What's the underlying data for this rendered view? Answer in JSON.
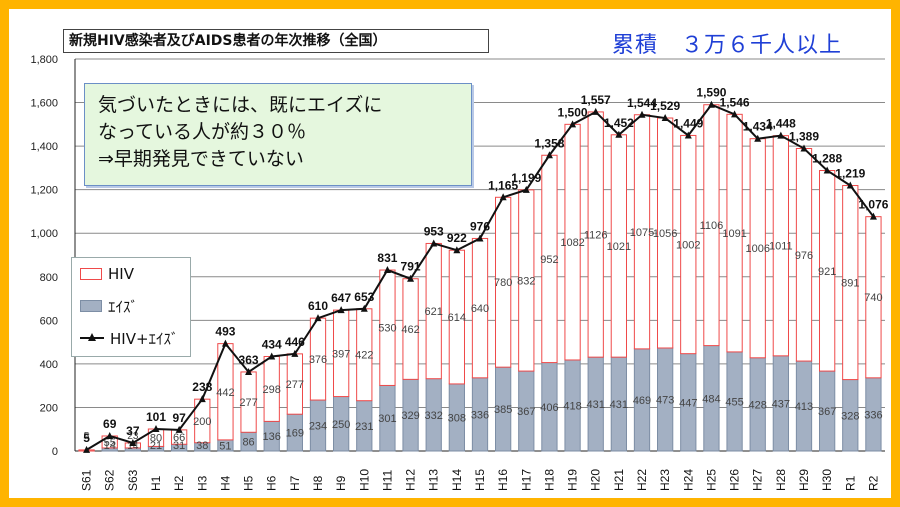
{
  "title": "新規HIV感染者及びAIDS患者の年次推移（全国）",
  "total_label": "累積　３万６千人以上",
  "note": [
    "気づいたときには、既にエイズに",
    "なっている人が約３０％",
    "⇒早期発見できていない"
  ],
  "legend": {
    "hiv": "HIV",
    "aids": "ｴｲｽﾞ",
    "total": "HIV+ｴｲｽﾞ"
  },
  "colors": {
    "frame": "#ffb400",
    "hiv_border": "#ef4a4a",
    "aids_fill": "#a3b0c3",
    "aids_border": "#7d8ea5",
    "line": "#111111",
    "total_text": "#1f3fd6",
    "note_bg": "#e5f7de"
  },
  "chart_data": {
    "type": "bar",
    "stacked": true,
    "categories": [
      "S61",
      "S62",
      "S63",
      "H1",
      "H2",
      "H3",
      "H4",
      "H5",
      "H6",
      "H7",
      "H8",
      "H9",
      "H10",
      "H11",
      "H12",
      "H13",
      "H14",
      "H15",
      "H16",
      "H17",
      "H18",
      "H19",
      "H20",
      "H21",
      "H22",
      "H23",
      "H24",
      "H25",
      "H26",
      "H27",
      "H28",
      "H29",
      "H30",
      "R1",
      "R2"
    ],
    "series": [
      {
        "name": "ｴｲｽﾞ",
        "values": [
          0,
          14,
          14,
          21,
          31,
          38,
          51,
          86,
          136,
          169,
          234,
          250,
          231,
          301,
          329,
          332,
          308,
          336,
          385,
          367,
          406,
          418,
          431,
          431,
          469,
          473,
          447,
          484,
          455,
          428,
          437,
          413,
          367,
          328,
          336
        ]
      },
      {
        "name": "HIV",
        "values": [
          5,
          55,
          23,
          80,
          66,
          200,
          442,
          277,
          298,
          277,
          376,
          397,
          422,
          530,
          462,
          621,
          614,
          640,
          780,
          832,
          952,
          1082,
          1126,
          1021,
          1075,
          1056,
          1002,
          1106,
          1091,
          1006,
          1011,
          976,
          921,
          891,
          740
        ]
      },
      {
        "name": "HIV+ｴｲｽﾞ",
        "type": "line",
        "values": [
          5,
          69,
          37,
          101,
          97,
          238,
          493,
          363,
          434,
          446,
          610,
          647,
          653,
          831,
          791,
          953,
          922,
          976,
          1165,
          1199,
          1358,
          1500,
          1557,
          1452,
          1544,
          1529,
          1449,
          1590,
          1546,
          1434,
          1448,
          1389,
          1288,
          1219,
          1076
        ]
      }
    ],
    "yaxis": {
      "min": 0,
      "max": 1800,
      "ticks": [
        "0",
        "200",
        "400",
        "600",
        "800",
        "1,000",
        "1,200",
        "1,400",
        "1,600",
        "1,800"
      ]
    },
    "grid": true
  }
}
